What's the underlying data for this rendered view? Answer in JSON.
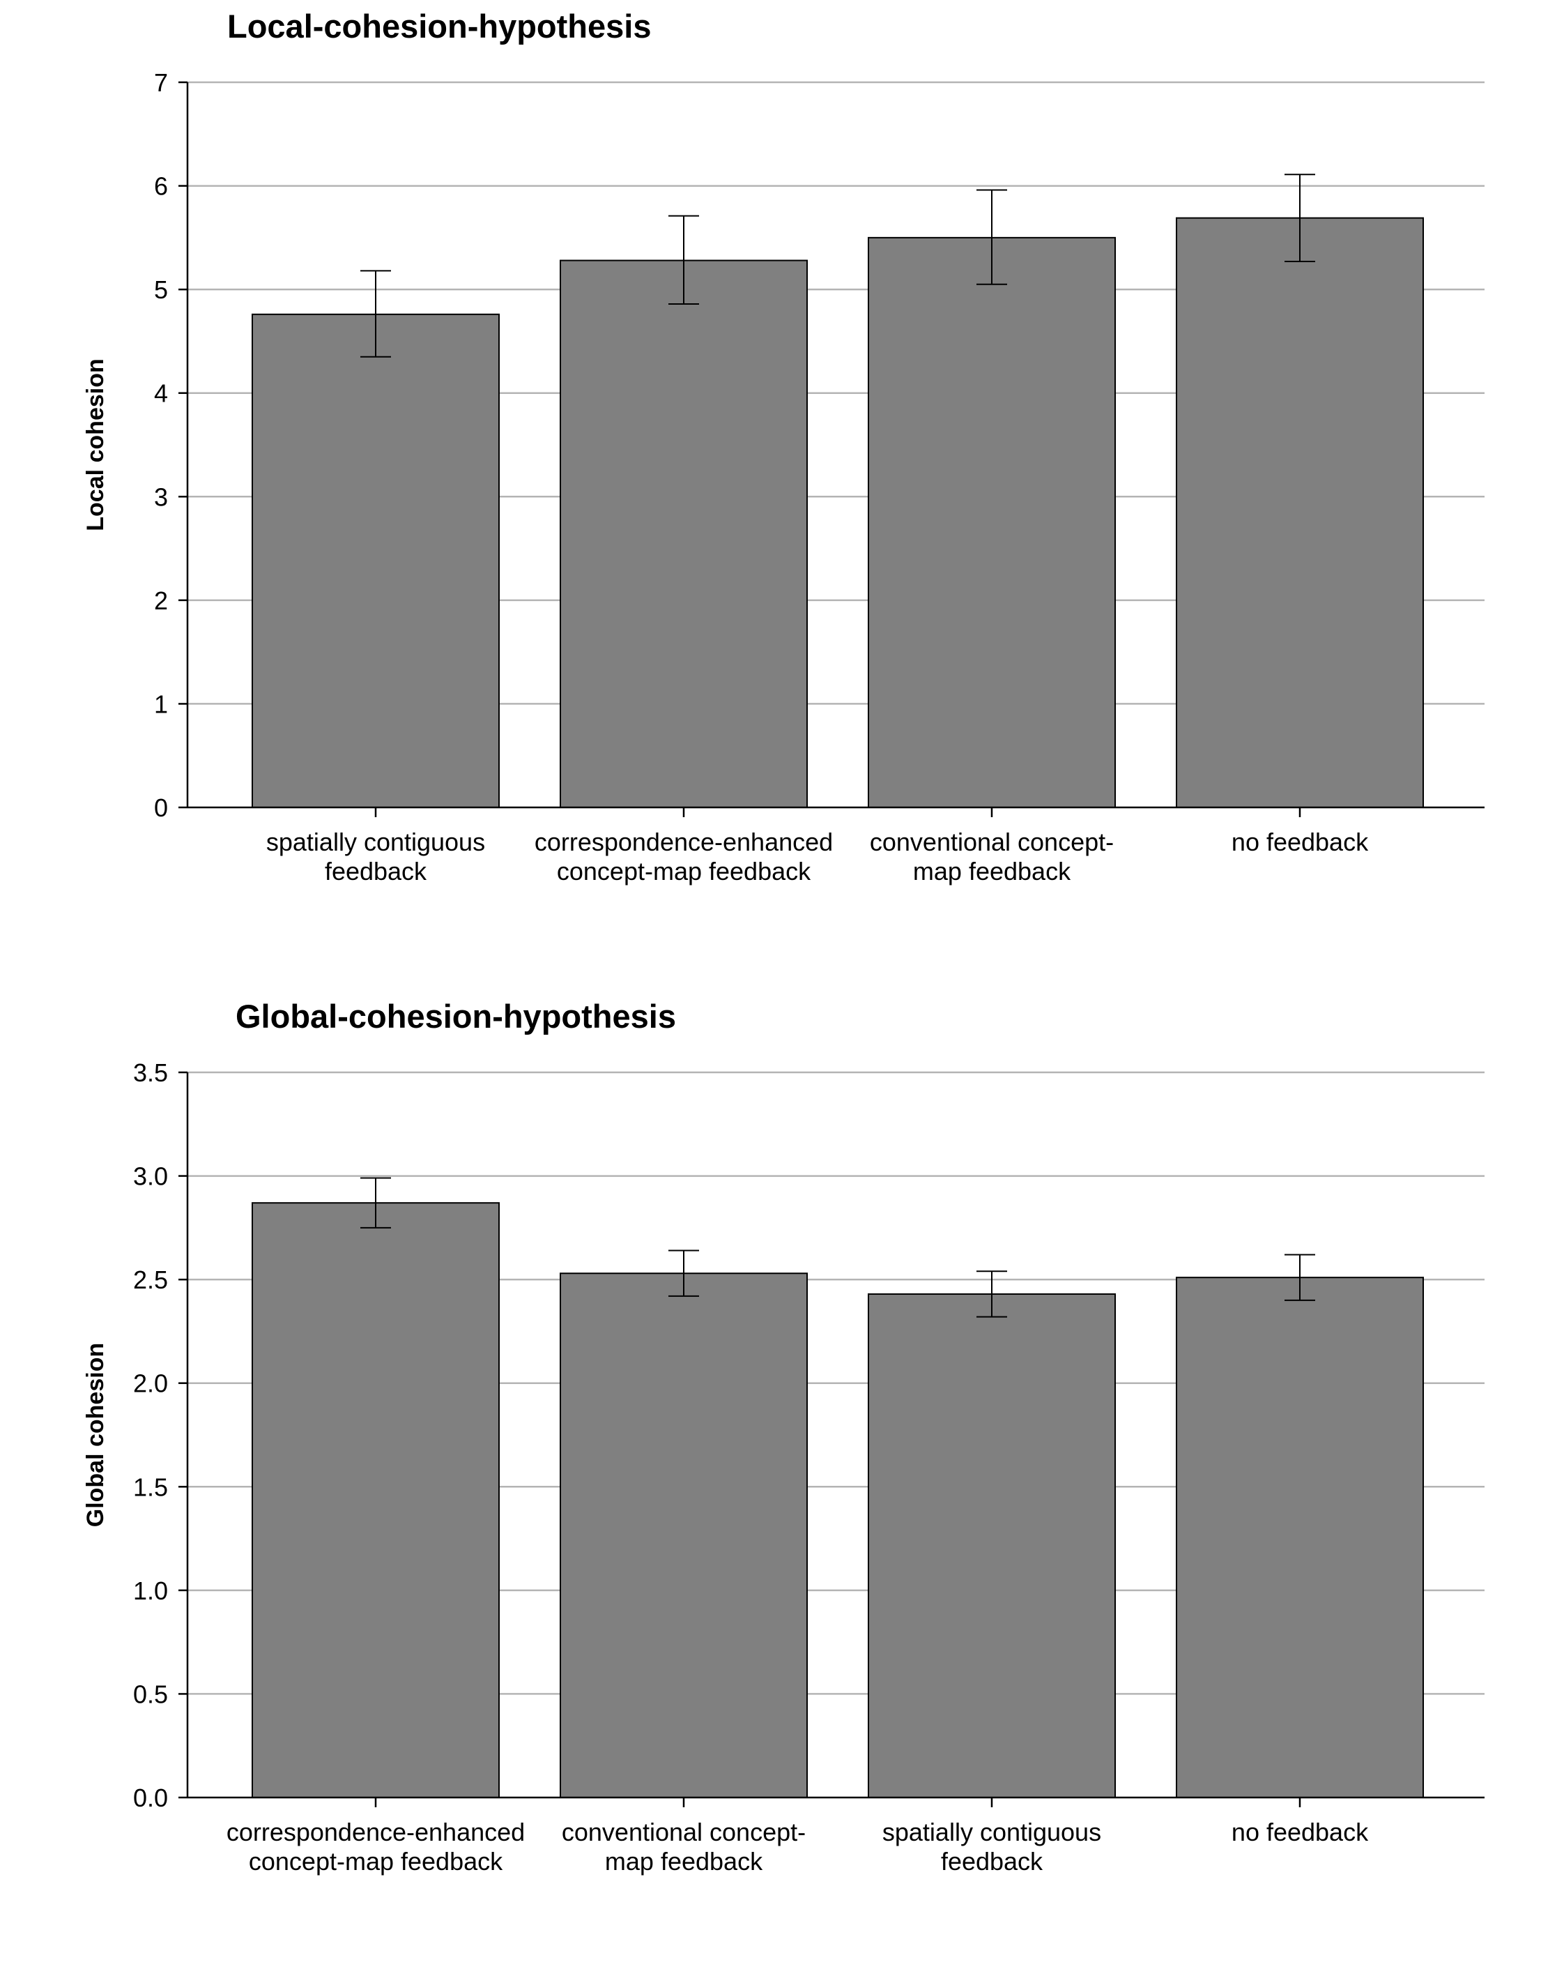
{
  "chart_data": [
    {
      "type": "bar",
      "title": "Local-cohesion-hypothesis",
      "xlabel": "",
      "ylabel": "Local cohesion",
      "ylim": [
        0,
        7
      ],
      "yticks": [
        "0",
        "1",
        "2",
        "3",
        "4",
        "5",
        "6",
        "7"
      ],
      "ytick_values": [
        0,
        1,
        2,
        3,
        4,
        5,
        6,
        7
      ],
      "categories": [
        [
          "spatially contiguous",
          "feedback"
        ],
        [
          "correspondence-enhanced",
          "concept-map feedback"
        ],
        [
          "conventional concept-",
          "map feedback"
        ],
        [
          "no feedback"
        ]
      ],
      "values": [
        4.76,
        5.28,
        5.5,
        5.69
      ],
      "error_low": [
        4.35,
        4.86,
        5.05,
        5.27
      ],
      "error_high": [
        5.18,
        5.71,
        5.96,
        6.11
      ],
      "bar_color": "#808080",
      "grid": true
    },
    {
      "type": "bar",
      "title": "Global-cohesion-hypothesis",
      "xlabel": "",
      "ylabel": "Global cohesion",
      "ylim": [
        0,
        3.5
      ],
      "yticks": [
        "0.0",
        "0.5",
        "1.0",
        "1.5",
        "2.0",
        "2.5",
        "3.0",
        "3.5"
      ],
      "ytick_values": [
        0,
        0.5,
        1.0,
        1.5,
        2.0,
        2.5,
        3.0,
        3.5
      ],
      "categories": [
        [
          "correspondence-enhanced",
          "concept-map feedback"
        ],
        [
          "conventional concept-",
          "map feedback"
        ],
        [
          "spatially contiguous",
          "feedback"
        ],
        [
          "no feedback"
        ]
      ],
      "values": [
        2.87,
        2.53,
        2.43,
        2.51
      ],
      "error_low": [
        2.75,
        2.42,
        2.32,
        2.4
      ],
      "error_high": [
        2.99,
        2.64,
        2.54,
        2.62
      ],
      "bar_color": "#808080",
      "grid": true
    }
  ]
}
